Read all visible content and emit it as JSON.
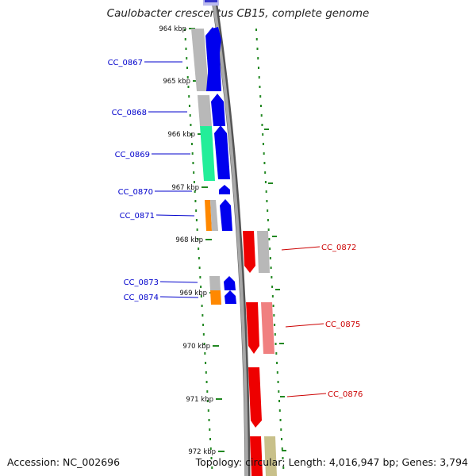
{
  "title": "Caulobacter crescentus CB15, complete genome",
  "footer": {
    "accession": "Accession: NC_002696",
    "topology": "Topology: circular; Length: 4,016,947 bp; Genes: 3,794"
  },
  "scale_labels": [
    "964 kbp",
    "965 kbp",
    "966 kbp",
    "967 kbp",
    "968 kbp",
    "969 kbp",
    "970 kbp",
    "971 kbp",
    "972 kbp"
  ],
  "gene_labels": {
    "forward": [
      "CC_0867",
      "CC_0868",
      "CC_0869",
      "CC_0870",
      "CC_0871",
      "CC_0873",
      "CC_0874"
    ],
    "reverse": [
      "CC_0872",
      "CC_0875",
      "CC_0876"
    ]
  },
  "colors": {
    "forward_gene": "#0000ee",
    "reverse_gene": "#ee0000",
    "reverse_gene_light": "#f08080",
    "cds_grey": "#b8b8b8",
    "cog_green": "#22ee99",
    "cog_orange": "#ff8800",
    "cog_khaki": "#c8c08a",
    "backbone": "#888888",
    "scale": "#228822",
    "forward_label": "#0000cc",
    "reverse_label": "#cc0000"
  }
}
